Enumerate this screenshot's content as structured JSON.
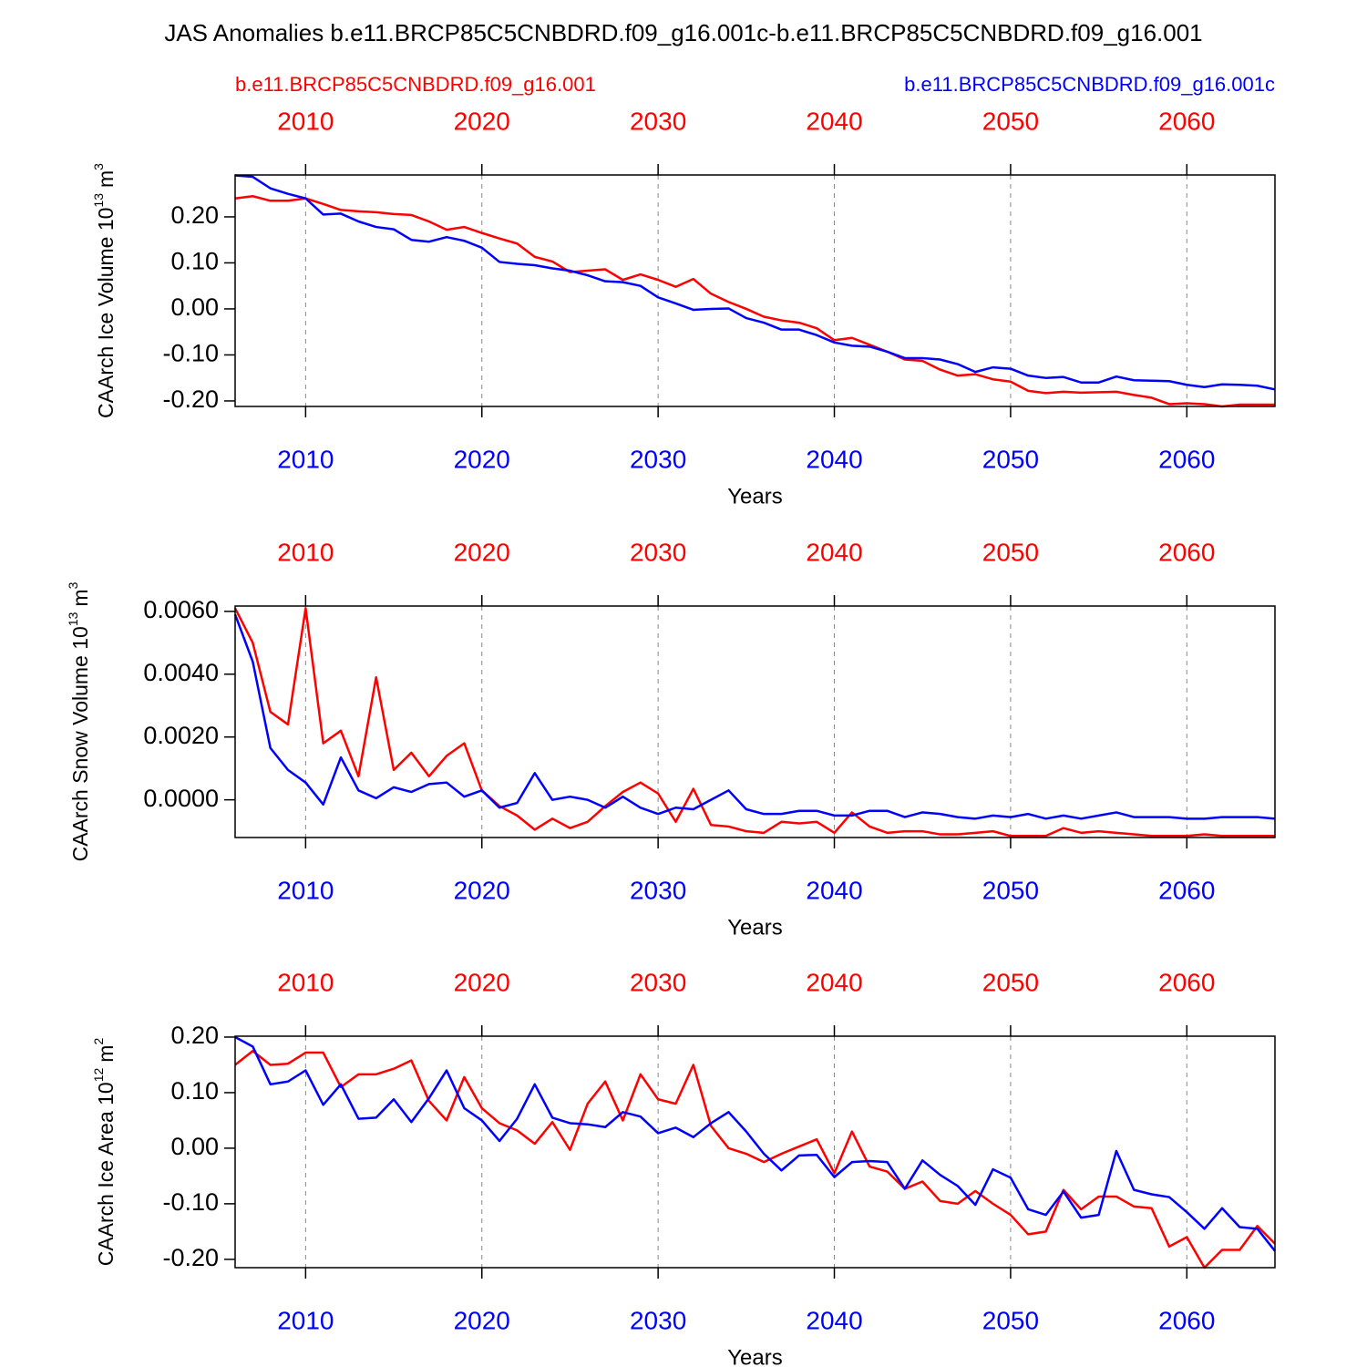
{
  "title": "JAS Anomalies b.e11.BRCP85C5CNBDRD.f09_g16.001c-b.e11.BRCP85C5CNBDRD.f09_g16.001",
  "chart_data": [
    {
      "type": "line",
      "y_label": {
        "text": "CAArch Ice Volume 10",
        "exp": "13",
        "unit": "m",
        "unit_exp": "3"
      },
      "x_label": "Years",
      "x": [
        2006,
        2007,
        2008,
        2009,
        2010,
        2011,
        2012,
        2013,
        2014,
        2015,
        2016,
        2017,
        2018,
        2019,
        2020,
        2021,
        2022,
        2023,
        2024,
        2025,
        2026,
        2027,
        2028,
        2029,
        2030,
        2031,
        2032,
        2033,
        2034,
        2035,
        2036,
        2037,
        2038,
        2039,
        2040,
        2041,
        2042,
        2043,
        2044,
        2045,
        2046,
        2047,
        2048,
        2049,
        2050,
        2051,
        2052,
        2053,
        2054,
        2055,
        2056,
        2057,
        2058,
        2059,
        2060,
        2061,
        2062,
        2063,
        2064,
        2065
      ],
      "xlim": [
        2006,
        2065
      ],
      "xticks": [
        2010,
        2020,
        2030,
        2040,
        2050,
        2060
      ],
      "top_xticks": [
        2010,
        2020,
        2030,
        2040,
        2050,
        2060
      ],
      "xtick_color": "#0000ff",
      "top_xtick_color": "#ff0000",
      "grid": "x-dashed",
      "ylim": [
        -0.212,
        0.291
      ],
      "yticks": [
        {
          "value": 0.2,
          "label": "0.20"
        },
        {
          "value": 0.1,
          "label": "0.10"
        },
        {
          "value": 0,
          "label": "0.00"
        },
        {
          "value": -0.1,
          "label": "-0.10"
        },
        {
          "value": -0.2,
          "label": "-0.20"
        }
      ],
      "series": [
        {
          "name": "b.e11.BRCP85C5CNBDRD.f09_g16.001",
          "color": "#ff0000",
          "values": [
            0.24,
            0.245,
            0.235,
            0.235,
            0.24,
            0.228,
            0.215,
            0.212,
            0.21,
            0.206,
            0.204,
            0.19,
            0.172,
            0.178,
            0.165,
            0.153,
            0.142,
            0.113,
            0.103,
            0.08,
            0.083,
            0.086,
            0.063,
            0.075,
            0.063,
            0.048,
            0.065,
            0.033,
            0.015,
            0.0,
            -0.017,
            -0.025,
            -0.03,
            -0.042,
            -0.068,
            -0.063,
            -0.078,
            -0.093,
            -0.11,
            -0.113,
            -0.132,
            -0.145,
            -0.142,
            -0.153,
            -0.158,
            -0.178,
            -0.183,
            -0.18,
            -0.182,
            -0.181,
            -0.18,
            -0.187,
            -0.193,
            -0.207,
            -0.205,
            -0.207,
            -0.212,
            -0.208,
            -0.208,
            -0.208
          ]
        },
        {
          "name": "b.e11.BRCP85C5CNBDRD.f09_g16.001c",
          "color": "#0000ff",
          "values": [
            0.29,
            0.287,
            0.262,
            0.25,
            0.24,
            0.205,
            0.207,
            0.19,
            0.178,
            0.173,
            0.15,
            0.146,
            0.156,
            0.148,
            0.133,
            0.102,
            0.098,
            0.095,
            0.088,
            0.083,
            0.073,
            0.06,
            0.058,
            0.05,
            0.025,
            0.012,
            -0.002,
            0.0,
            0.001,
            -0.02,
            -0.03,
            -0.045,
            -0.045,
            -0.057,
            -0.073,
            -0.08,
            -0.082,
            -0.093,
            -0.107,
            -0.107,
            -0.11,
            -0.12,
            -0.137,
            -0.127,
            -0.13,
            -0.145,
            -0.15,
            -0.148,
            -0.16,
            -0.16,
            -0.147,
            -0.155,
            -0.156,
            -0.157,
            -0.165,
            -0.17,
            -0.164,
            -0.165,
            -0.167,
            -0.175
          ]
        }
      ]
    },
    {
      "type": "line",
      "y_label": {
        "text": "CAArch Snow Volume 10",
        "exp": "13",
        "unit": "m",
        "unit_exp": "3"
      },
      "x_label": "Years",
      "x": [
        2006,
        2007,
        2008,
        2009,
        2010,
        2011,
        2012,
        2013,
        2014,
        2015,
        2016,
        2017,
        2018,
        2019,
        2020,
        2021,
        2022,
        2023,
        2024,
        2025,
        2026,
        2027,
        2028,
        2029,
        2030,
        2031,
        2032,
        2033,
        2034,
        2035,
        2036,
        2037,
        2038,
        2039,
        2040,
        2041,
        2042,
        2043,
        2044,
        2045,
        2046,
        2047,
        2048,
        2049,
        2050,
        2051,
        2052,
        2053,
        2054,
        2055,
        2056,
        2057,
        2058,
        2059,
        2060,
        2061,
        2062,
        2063,
        2064,
        2065
      ],
      "xlim": [
        2006,
        2065
      ],
      "xticks": [
        2010,
        2020,
        2030,
        2040,
        2050,
        2060
      ],
      "top_xticks": [
        2010,
        2020,
        2030,
        2040,
        2050,
        2060
      ],
      "xtick_color": "#0000ff",
      "top_xtick_color": "#ff0000",
      "grid": "x-dashed",
      "ylim": [
        -0.0012,
        0.00617
      ],
      "yticks": [
        {
          "value": 0.006,
          "label": "0.0060"
        },
        {
          "value": 0.004,
          "label": "0.0040"
        },
        {
          "value": 0.002,
          "label": "0.0020"
        },
        {
          "value": 0,
          "label": "0.0000"
        }
      ],
      "series": [
        {
          "color": "#ff0000",
          "values": [
            0.0061,
            0.005,
            0.0028,
            0.0024,
            0.0061,
            0.0018,
            0.0022,
            0.00075,
            0.0039,
            0.00095,
            0.0015,
            0.00075,
            0.0014,
            0.0018,
            0.0003,
            -0.0002,
            -0.0005,
            -0.00095,
            -0.0006,
            -0.0009,
            -0.0007,
            -0.0002,
            0.00025,
            0.00055,
            0.0002,
            -0.0007,
            0.00035,
            -0.0008,
            -0.00085,
            -0.001,
            -0.00105,
            -0.0007,
            -0.00075,
            -0.0007,
            -0.00105,
            -0.0004,
            -0.00085,
            -0.00105,
            -0.001,
            -0.001,
            -0.0011,
            -0.0011,
            -0.00105,
            -0.001,
            -0.00115,
            -0.00115,
            -0.00115,
            -0.0009,
            -0.00105,
            -0.001,
            -0.00105,
            -0.0011,
            -0.00115,
            -0.00115,
            -0.00115,
            -0.0011,
            -0.00115,
            -0.00115,
            -0.00115,
            -0.00115
          ]
        },
        {
          "color": "#0000ff",
          "values": [
            0.0059,
            0.0044,
            0.00165,
            0.00095,
            0.00055,
            -0.00015,
            0.00135,
            0.0003,
            5e-05,
            0.0004,
            0.00025,
            0.0005,
            0.00055,
            0.0001,
            0.0003,
            -0.00025,
            -0.0001,
            0.00085,
            0.0,
            0.0001,
            0.0,
            -0.00025,
            0.0001,
            -0.00025,
            -0.00045,
            -0.00025,
            -0.0003,
            0.0,
            0.0003,
            -0.0003,
            -0.00045,
            -0.00045,
            -0.00035,
            -0.00035,
            -0.0005,
            -0.0005,
            -0.00035,
            -0.00035,
            -0.00055,
            -0.0004,
            -0.00045,
            -0.00055,
            -0.0006,
            -0.0005,
            -0.00055,
            -0.00045,
            -0.0006,
            -0.0005,
            -0.0006,
            -0.0005,
            -0.0004,
            -0.00055,
            -0.00055,
            -0.00055,
            -0.0006,
            -0.0006,
            -0.00055,
            -0.00055,
            -0.00055,
            -0.0006
          ]
        }
      ]
    },
    {
      "type": "line",
      "y_label": {
        "text": "CAArch Ice Area 10",
        "exp": "12",
        "unit": "m",
        "unit_exp": "2"
      },
      "x_label": "Years",
      "x": [
        2006,
        2007,
        2008,
        2009,
        2010,
        2011,
        2012,
        2013,
        2014,
        2015,
        2016,
        2017,
        2018,
        2019,
        2020,
        2021,
        2022,
        2023,
        2024,
        2025,
        2026,
        2027,
        2028,
        2029,
        2030,
        2031,
        2032,
        2033,
        2034,
        2035,
        2036,
        2037,
        2038,
        2039,
        2040,
        2041,
        2042,
        2043,
        2044,
        2045,
        2046,
        2047,
        2048,
        2049,
        2050,
        2051,
        2052,
        2053,
        2054,
        2055,
        2056,
        2057,
        2058,
        2059,
        2060,
        2061,
        2062,
        2063,
        2064,
        2065
      ],
      "xlim": [
        2006,
        2065
      ],
      "xticks": [
        2010,
        2020,
        2030,
        2040,
        2050,
        2060
      ],
      "top_xticks": [
        2010,
        2020,
        2030,
        2040,
        2050,
        2060
      ],
      "xtick_color": "#0000ff",
      "top_xtick_color": "#ff0000",
      "grid": "x-dashed",
      "ylim": [
        -0.215,
        0.2016
      ],
      "yticks": [
        {
          "value": 0.2,
          "label": "0.20"
        },
        {
          "value": 0.1,
          "label": "0.10"
        },
        {
          "value": 0,
          "label": "0.00"
        },
        {
          "value": -0.1,
          "label": "-0.10"
        },
        {
          "value": -0.2,
          "label": "-0.20"
        }
      ],
      "series": [
        {
          "color": "#ff0000",
          "values": [
            0.15,
            0.175,
            0.15,
            0.152,
            0.172,
            0.172,
            0.11,
            0.133,
            0.133,
            0.143,
            0.158,
            0.085,
            0.05,
            0.128,
            0.072,
            0.045,
            0.032,
            0.008,
            0.047,
            -0.003,
            0.08,
            0.12,
            0.05,
            0.133,
            0.088,
            0.08,
            0.15,
            0.04,
            0.0,
            -0.01,
            -0.025,
            -0.01,
            0.003,
            0.016,
            -0.045,
            0.03,
            -0.033,
            -0.042,
            -0.073,
            -0.06,
            -0.095,
            -0.1,
            -0.077,
            -0.1,
            -0.12,
            -0.155,
            -0.15,
            -0.075,
            -0.11,
            -0.087,
            -0.087,
            -0.105,
            -0.108,
            -0.177,
            -0.16,
            -0.215,
            -0.183,
            -0.183,
            -0.14,
            -0.172
          ]
        },
        {
          "color": "#0000ff",
          "values": [
            0.2,
            0.183,
            0.115,
            0.12,
            0.14,
            0.078,
            0.115,
            0.053,
            0.055,
            0.088,
            0.047,
            0.09,
            0.14,
            0.072,
            0.05,
            0.013,
            0.053,
            0.115,
            0.055,
            0.045,
            0.043,
            0.038,
            0.065,
            0.057,
            0.027,
            0.037,
            0.02,
            0.045,
            0.065,
            0.03,
            -0.01,
            -0.04,
            -0.013,
            -0.012,
            -0.052,
            -0.025,
            -0.023,
            -0.025,
            -0.073,
            -0.022,
            -0.048,
            -0.068,
            -0.102,
            -0.038,
            -0.053,
            -0.11,
            -0.12,
            -0.078,
            -0.125,
            -0.12,
            -0.005,
            -0.075,
            -0.083,
            -0.088,
            -0.115,
            -0.145,
            -0.108,
            -0.142,
            -0.145,
            -0.185
          ]
        }
      ]
    }
  ]
}
